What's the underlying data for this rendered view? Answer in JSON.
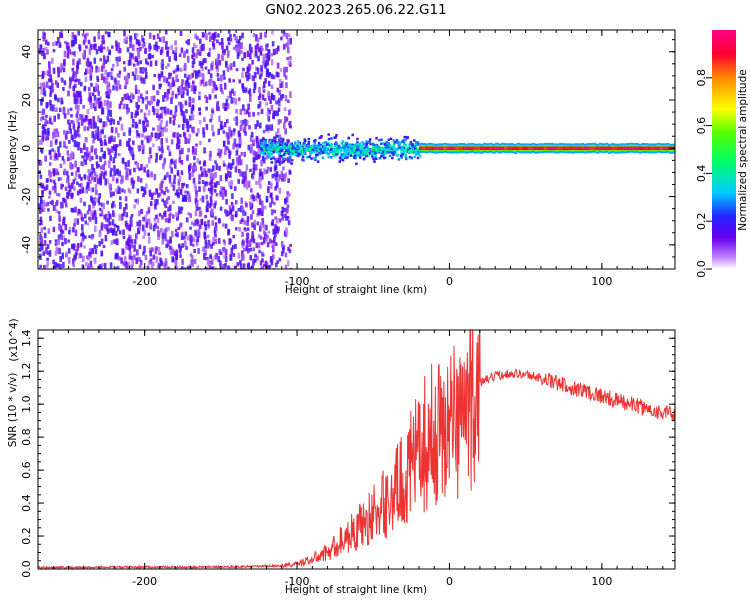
{
  "title": "GN02.2023.265.06.22.G11",
  "chart_data": [
    {
      "type": "heatmap",
      "xlabel": "Height of straight line (km)",
      "ylabel": "Frequency (Hz)",
      "xlim": [
        -270,
        148
      ],
      "ylim": [
        -50,
        49
      ],
      "x_ticks": [
        -200,
        -100,
        0,
        100
      ],
      "x_tick_labels": [
        "-200",
        "-100",
        "0",
        "100"
      ],
      "y_ticks": [
        -40,
        -20,
        0,
        20,
        40
      ],
      "y_tick_labels": [
        "-40",
        "-20",
        "0",
        "20",
        "40"
      ],
      "colorbar": {
        "label": "Normalized spectral amplitude",
        "range": [
          0,
          1
        ],
        "ticks": [
          0.0,
          0.2,
          0.4,
          0.6,
          0.8
        ],
        "tick_labels": [
          "0.0",
          "0.2",
          "0.4",
          "0.6",
          "0.8"
        ]
      },
      "features": [
        {
          "x_range": [
            -270,
            -105
          ],
          "freq_spread": [
            -50,
            49
          ],
          "amplitude": [
            0.05,
            0.2
          ]
        },
        {
          "x_range": [
            -125,
            -20
          ],
          "freq_spread": [
            -7,
            7
          ],
          "amplitude": [
            0.15,
            0.45
          ]
        },
        {
          "x_range": [
            -20,
            148
          ],
          "freq_center": 0,
          "amplitude": [
            0.85,
            1.0
          ]
        }
      ]
    },
    {
      "type": "line",
      "xlabel": "Height of straight line (km)",
      "ylabel": "SNR (10 * v/v)",
      "y_multiplier": "(x10^4)",
      "xlim": [
        -270,
        148
      ],
      "ylim": [
        0,
        1.45
      ],
      "x_ticks": [
        -200,
        -100,
        0,
        100
      ],
      "x_tick_labels": [
        "-200",
        "-100",
        "0",
        "100"
      ],
      "y_ticks": [
        0,
        0.2,
        0.4,
        0.6,
        0.8,
        1.0,
        1.2,
        1.4
      ],
      "y_tick_labels": [
        "0.0",
        "0.2",
        "0.4",
        "0.6",
        "0.8",
        "1.0",
        "1.2",
        "1.4"
      ],
      "color": "#ee3333",
      "series": [
        {
          "x": [
            -270,
            -240,
            -200,
            -160,
            -130,
            -110,
            -100,
            -90,
            -80,
            -70,
            -60,
            -50,
            -40,
            -30,
            -20,
            -15,
            -10,
            0,
            10,
            20,
            30,
            40,
            50,
            60,
            70,
            80,
            90,
            100,
            110,
            120,
            130,
            140,
            148
          ],
          "y": [
            0.01,
            0.01,
            0.012,
            0.012,
            0.015,
            0.02,
            0.03,
            0.06,
            0.1,
            0.18,
            0.25,
            0.33,
            0.42,
            0.55,
            0.7,
            0.78,
            0.82,
            0.88,
            0.98,
            1.13,
            1.17,
            1.19,
            1.18,
            1.16,
            1.13,
            1.1,
            1.08,
            1.05,
            1.02,
            1.0,
            0.97,
            0.95,
            0.93
          ]
        }
      ]
    }
  ]
}
